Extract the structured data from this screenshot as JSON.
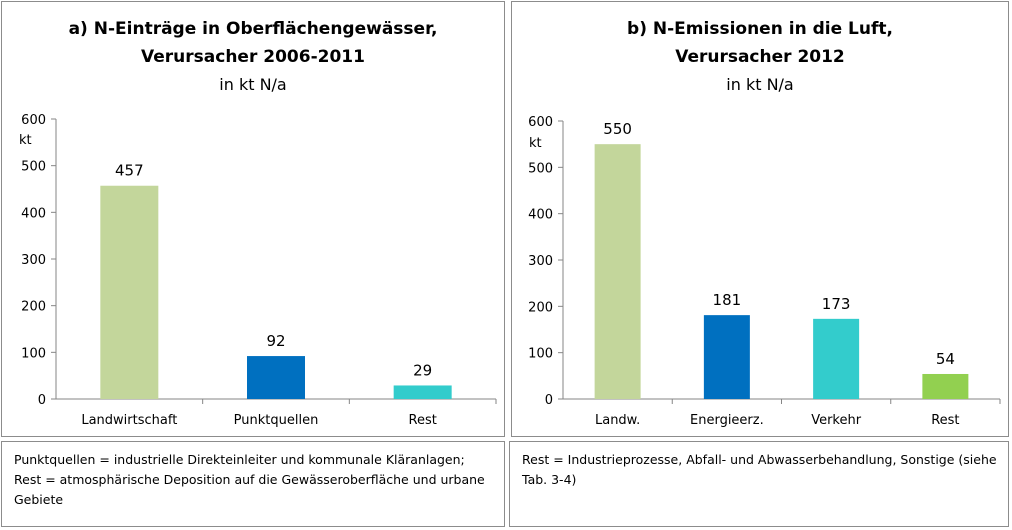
{
  "charts": [
    {
      "title_line1": "a) N-Einträge in Oberflächengewässer,",
      "title_line2": "Verursacher 2006-2011",
      "subtitle": "in kt N/a",
      "unit_label": "kt",
      "note": "Punktquellen = industrielle Direkteinleiter und kommunale Kläranlagen; Rest = atmosphärische Deposition auf die Gewässeroberfläche und urbane Gebiete"
    },
    {
      "title_line1": "b) N-Emissionen in die Luft,",
      "title_line2": "Verursacher 2012",
      "subtitle": "in kt N/a",
      "unit_label": "kt",
      "note": "Rest = Industrieprozesse, Abfall- und Abwasserbehandlung, Sonstige (siehe Tab. 3-4)"
    }
  ],
  "chart_data": [
    {
      "type": "bar",
      "title": "a) N-Einträge in Oberflächengewässer, Verursacher 2006-2011",
      "subtitle": "in kt N/a",
      "ylabel": "kt",
      "categories": [
        "Landwirtschaft",
        "Punktquellen",
        "Rest"
      ],
      "values": [
        457,
        92,
        29
      ],
      "colors": [
        "#c3d69b",
        "#0070c0",
        "#33cccc"
      ],
      "ylim": [
        0,
        600
      ],
      "yticks": [
        0,
        100,
        200,
        300,
        400,
        500,
        600
      ],
      "grid": false,
      "legend": "none"
    },
    {
      "type": "bar",
      "title": "b) N-Emissionen in die Luft, Verursacher 2012",
      "subtitle": "in kt N/a",
      "ylabel": "kt",
      "categories": [
        "Landw.",
        "Energieerz.",
        "Verkehr",
        "Rest"
      ],
      "values": [
        550,
        181,
        173,
        54
      ],
      "colors": [
        "#c3d69b",
        "#0070c0",
        "#33cccc",
        "#92d050"
      ],
      "ylim": [
        0,
        600
      ],
      "yticks": [
        0,
        100,
        200,
        300,
        400,
        500,
        600
      ],
      "grid": false,
      "legend": "none"
    }
  ]
}
